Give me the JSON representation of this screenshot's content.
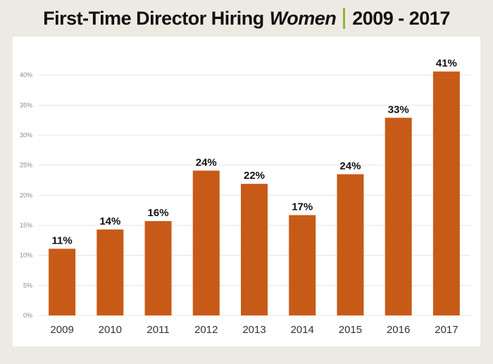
{
  "title": {
    "main": "First-Time Director Hiring",
    "emphasis": "Women",
    "range": "2009 - 2017"
  },
  "colors": {
    "bar": "#C85A17",
    "accent_divider": "#8FB43A",
    "background": "#EDEAE3",
    "grid": "#E4E4E4"
  },
  "chart_data": {
    "type": "bar",
    "categories": [
      "2009",
      "2010",
      "2011",
      "2012",
      "2013",
      "2014",
      "2015",
      "2016",
      "2017"
    ],
    "values": [
      11,
      14,
      16,
      24,
      22,
      17,
      24,
      33,
      41
    ],
    "bar_values": [
      11.1,
      14.3,
      15.7,
      24.1,
      21.9,
      16.7,
      23.5,
      32.9,
      40.6
    ],
    "data_labels": [
      "11%",
      "14%",
      "16%",
      "24%",
      "22%",
      "17%",
      "24%",
      "33%",
      "41%"
    ],
    "ylim": [
      0,
      45
    ],
    "yticks": [
      0,
      5,
      10,
      15,
      20,
      25,
      30,
      35,
      40
    ],
    "ytick_labels": [
      "0%",
      "5%",
      "10%",
      "15%",
      "20%",
      "25%",
      "30%",
      "35%",
      "40%"
    ],
    "grid": true,
    "xlabel": "",
    "ylabel": ""
  }
}
